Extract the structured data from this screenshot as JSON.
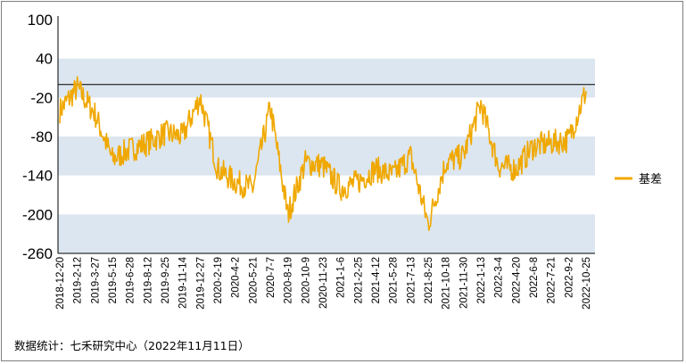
{
  "chart_data": {
    "type": "line",
    "title": "",
    "xlabel": "",
    "ylabel": "",
    "ylim": [
      -260,
      100
    ],
    "yticks": [
      100,
      40,
      -20,
      -80,
      -140,
      -200,
      -260
    ],
    "reference_line": 0,
    "band_color": "#dce6f0",
    "line_color": "#f0a800",
    "grid": false,
    "legend_position": "right",
    "x_tick_labels": [
      "2018-12-20",
      "2019-2-12",
      "2019-3-27",
      "2019-5-15",
      "2019-6-28",
      "2019-8-12",
      "2019-9-25",
      "2019-11-14",
      "2019-12-27",
      "2020-2-19",
      "2020-4-2",
      "2020-5-21",
      "2020-7-7",
      "2020-8-19",
      "2020-10-9",
      "2020-11-23",
      "2021-1-6",
      "2021-2-25",
      "2021-4-12",
      "2021-5-28",
      "2021-7-13",
      "2021-8-25",
      "2021-10-18",
      "2021-11-30",
      "2022-1-13",
      "2022-3-4",
      "2022-4-20",
      "2022-6-8",
      "2022-7-21",
      "2022-9-2",
      "2022-10-25"
    ],
    "series": [
      {
        "name": "基差",
        "color": "#f0a800",
        "values_at_ticks": [
          -40,
          -5,
          -45,
          -115,
          -100,
          -90,
          -75,
          -80,
          -20,
          -130,
          -150,
          -160,
          -35,
          -200,
          -120,
          -125,
          -160,
          -150,
          -130,
          -140,
          -110,
          -215,
          -120,
          -110,
          -30,
          -125,
          -130,
          -95,
          -90,
          -85,
          -10
        ]
      }
    ]
  },
  "source_note": "数据统计：七禾研究中心（2022年11月11日）"
}
